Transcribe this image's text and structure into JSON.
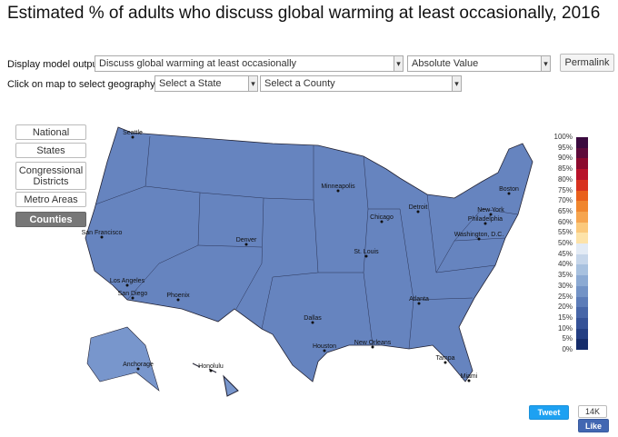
{
  "header": {
    "title": "Estimated % of adults who discuss global warming at least occasionally, 2016"
  },
  "controls": {
    "output_label": "Display model output:",
    "output_value": "Discuss global warming at least occasionally",
    "mode_value": "Absolute Value",
    "permalink": "Permalink",
    "geo_label": "Click on map to select geography, or:",
    "state_value": "Select a State",
    "county_value": "Select a County"
  },
  "geography_buttons": [
    "National",
    "States",
    "Congressional Districts",
    "Metro Areas",
    "Counties"
  ],
  "active_button": "Counties",
  "cities": [
    "Seattle",
    "Minneapolis",
    "Boston",
    "Detroit",
    "Chicago",
    "New York",
    "Philadelphia",
    "Washington, D.C.",
    "San Francisco",
    "Denver",
    "St. Louis",
    "Los Angeles",
    "San Diego",
    "Phoenix",
    "Atlanta",
    "Dallas",
    "Houston",
    "New Orleans",
    "Tampa",
    "Miami",
    "Anchorage",
    "Honolulu"
  ],
  "legend": {
    "labels": [
      "100%",
      "95%",
      "90%",
      "85%",
      "80%",
      "75%",
      "70%",
      "65%",
      "60%",
      "55%",
      "50%",
      "45%",
      "40%",
      "35%",
      "30%",
      "25%",
      "20%",
      "15%",
      "10%",
      "5%",
      "0%"
    ],
    "colors": [
      "#3b0a3f",
      "#5e0b3b",
      "#8c0a2e",
      "#b8122a",
      "#d8321f",
      "#e9601c",
      "#f0862e",
      "#f6a54f",
      "#fbc97c",
      "#fde3a9",
      "#e3ebf5",
      "#c6d6ea",
      "#a8c1df",
      "#8caad3",
      "#7393c6",
      "#5c7cb8",
      "#4766a8",
      "#355297",
      "#243f83",
      "#162d6b"
    ]
  },
  "social": {
    "tweet": "Tweet",
    "like_count": "14K",
    "like": "Like"
  }
}
